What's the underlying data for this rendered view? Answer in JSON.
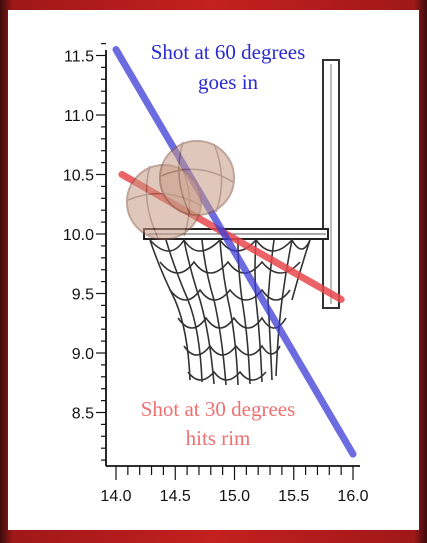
{
  "annotations": {
    "shot60_line1": "Shot at 60 degrees",
    "shot60_line2": "goes in",
    "shot30_line1": "Shot at 30 degrees",
    "shot30_line2": "hits rim"
  },
  "colors": {
    "shot60": "#3b3bd6",
    "shot30": "#e8484c",
    "frame": "#c42020"
  },
  "chart_data": {
    "type": "line",
    "xlim": [
      14.0,
      16.0
    ],
    "ylim": [
      8.0,
      11.7
    ],
    "x_ticks": [
      "14.0",
      "14.5",
      "15.0",
      "15.5",
      "16.0"
    ],
    "y_ticks": [
      "8.5",
      "9.0",
      "9.5",
      "10.0",
      "10.5",
      "11.0",
      "11.5"
    ],
    "series": [
      {
        "name": "Shot at 60 degrees",
        "points": [
          [
            14.0,
            11.55
          ],
          [
            16.0,
            8.15
          ]
        ]
      },
      {
        "name": "Shot at 30 degrees",
        "points": [
          [
            14.05,
            10.5
          ],
          [
            15.9,
            9.45
          ]
        ]
      }
    ]
  }
}
